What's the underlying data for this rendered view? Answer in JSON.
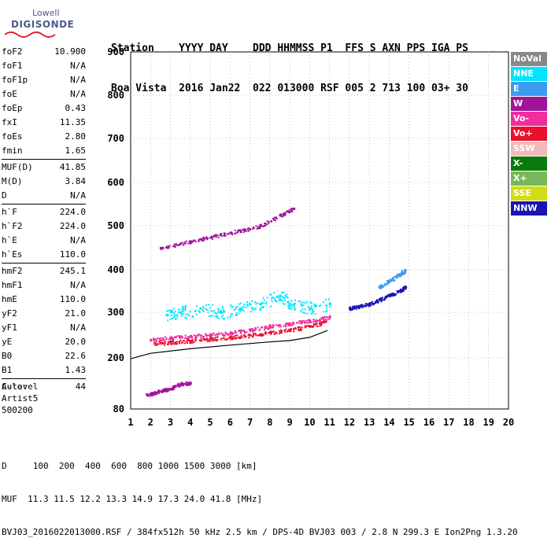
{
  "logo": {
    "line1": "Lowell",
    "line2": "DIGISONDE"
  },
  "header": {
    "line1": "Station    YYYY DAY    DDD HHMMSS P1  FFS S AXN PPS IGA PS",
    "line2": "Boa Vista  2016 Jan22  022 013000 RSF 005 2 713 100 03+ 30"
  },
  "params": {
    "group1": [
      {
        "k": "foF2",
        "v": "10.900"
      },
      {
        "k": "foF1",
        "v": "N/A"
      },
      {
        "k": "foF1p",
        "v": "N/A"
      },
      {
        "k": "foE",
        "v": "N/A"
      },
      {
        "k": "foEp",
        "v": "0.43"
      },
      {
        "k": "fxI",
        "v": "11.35"
      },
      {
        "k": "foEs",
        "v": "2.80"
      },
      {
        "k": "fmin",
        "v": "1.65"
      }
    ],
    "group2": [
      {
        "k": "MUF(D)",
        "v": "41.85"
      },
      {
        "k": "M(D)",
        "v": "3.84"
      },
      {
        "k": "D",
        "v": "N/A"
      }
    ],
    "group3": [
      {
        "k": "h`F",
        "v": "224.0"
      },
      {
        "k": "h`F2",
        "v": "224.0"
      },
      {
        "k": "h`E",
        "v": "N/A"
      },
      {
        "k": "h`Es",
        "v": "110.0"
      }
    ],
    "group4": [
      {
        "k": "hmF2",
        "v": "245.1"
      },
      {
        "k": "hmF1",
        "v": "N/A"
      },
      {
        "k": "hmE",
        "v": "110.0"
      },
      {
        "k": "yF2",
        "v": "21.0"
      },
      {
        "k": "yF1",
        "v": "N/A"
      },
      {
        "k": "yE",
        "v": "20.0"
      },
      {
        "k": "B0",
        "v": "22.6"
      },
      {
        "k": "B1",
        "v": "1.43"
      }
    ],
    "group5": [
      {
        "k": "C-level",
        "v": "44"
      }
    ]
  },
  "auto": {
    "line1": "Auto:",
    "line2": "Artist5",
    "line3": "500200"
  },
  "legend": [
    {
      "label": "NoVal",
      "color": "#888888"
    },
    {
      "label": "NNE",
      "color": "#00e5ff"
    },
    {
      "label": "E",
      "color": "#3a9cf0"
    },
    {
      "label": "W",
      "color": "#a0149a"
    },
    {
      "label": "Vo-",
      "color": "#f02ca0"
    },
    {
      "label": "Vo+",
      "color": "#e8102c"
    },
    {
      "label": "SSW",
      "color": "#f4b8b8"
    },
    {
      "label": "X-",
      "color": "#0a7a0a"
    },
    {
      "label": "X+",
      "color": "#78b85a"
    },
    {
      "label": "SSE",
      "color": "#d2dc14"
    },
    {
      "label": "NNW",
      "color": "#1a14b4"
    }
  ],
  "footer": {
    "line1": "D     100  200  400  600  800 1000 1500 3000 [km]",
    "line2": "MUF  11.3 11.5 12.2 13.3 14.9 17.3 24.0 41.8 [MHz]",
    "line3": "BVJ03_2016022013000.RSF / 384fx512h 50 kHz 2.5 km / DPS-4D BVJ03 003 / 2.8 N 299.3 E Ion2Png 1.3.20"
  },
  "chart_data": {
    "type": "scatter",
    "x_ticks": [
      "1",
      "2",
      "3",
      "4",
      "5",
      "6",
      "7",
      "8",
      "9",
      "10",
      "11",
      "12",
      "13",
      "14",
      "15",
      "16",
      "17",
      "18",
      "19",
      "20"
    ],
    "y_ticks": [
      "80",
      "200",
      "300",
      "400",
      "500",
      "600",
      "700",
      "800",
      "900"
    ],
    "xlim": [
      1,
      20
    ],
    "ylim": [
      80,
      900
    ],
    "axes": "Frequency (MHz) vs Virtual Height (km)",
    "series": [
      {
        "name": "Vo-",
        "points": [
          [
            2.0,
            240
          ],
          [
            3.0,
            245
          ],
          [
            4.0,
            248
          ],
          [
            5.0,
            252
          ],
          [
            6.0,
            256
          ],
          [
            7.0,
            262
          ],
          [
            8.0,
            270
          ],
          [
            9.0,
            276
          ],
          [
            10.0,
            282
          ],
          [
            11.0,
            290
          ]
        ]
      },
      {
        "name": "Vo+",
        "points": [
          [
            2.2,
            232
          ],
          [
            3.0,
            235
          ],
          [
            4.0,
            238
          ],
          [
            5.0,
            242
          ],
          [
            6.0,
            246
          ],
          [
            7.0,
            250
          ],
          [
            8.0,
            256
          ],
          [
            9.0,
            262
          ],
          [
            10.0,
            270
          ],
          [
            10.8,
            280
          ]
        ]
      },
      {
        "name": "NNE",
        "points": [
          [
            2.8,
            295
          ],
          [
            3.5,
            300
          ],
          [
            4.5,
            310
          ],
          [
            5.5,
            300
          ],
          [
            6.5,
            310
          ],
          [
            7.5,
            320
          ],
          [
            8.5,
            340
          ],
          [
            9.0,
            320
          ],
          [
            10.0,
            310
          ],
          [
            11.0,
            320
          ]
        ]
      },
      {
        "name": "W",
        "points": [
          [
            2.5,
            450
          ],
          [
            3.5,
            460
          ],
          [
            4.5,
            470
          ],
          [
            5.5,
            480
          ],
          [
            6.5,
            490
          ],
          [
            7.5,
            500
          ],
          [
            8.5,
            525
          ],
          [
            9.2,
            540
          ]
        ]
      },
      {
        "name": "NNW",
        "points": [
          [
            12.0,
            310
          ],
          [
            12.5,
            315
          ],
          [
            13.0,
            320
          ],
          [
            13.5,
            330
          ],
          [
            14.0,
            340
          ],
          [
            14.5,
            350
          ],
          [
            14.8,
            360
          ]
        ]
      },
      {
        "name": "E",
        "points": [
          [
            13.5,
            360
          ],
          [
            14.0,
            375
          ],
          [
            14.5,
            390
          ],
          [
            14.8,
            400
          ]
        ]
      },
      {
        "name": "Es",
        "points": [
          [
            1.8,
            115
          ],
          [
            2.2,
            118
          ],
          [
            2.6,
            125
          ],
          [
            3.0,
            128
          ],
          [
            3.5,
            140
          ],
          [
            4.0,
            142
          ]
        ]
      }
    ],
    "profile_curve": [
      [
        1.0,
        198
      ],
      [
        2.0,
        210
      ],
      [
        4.0,
        220
      ],
      [
        6.0,
        228
      ],
      [
        8.0,
        235
      ],
      [
        9.0,
        238
      ],
      [
        10.0,
        245
      ],
      [
        10.9,
        260
      ]
    ]
  }
}
